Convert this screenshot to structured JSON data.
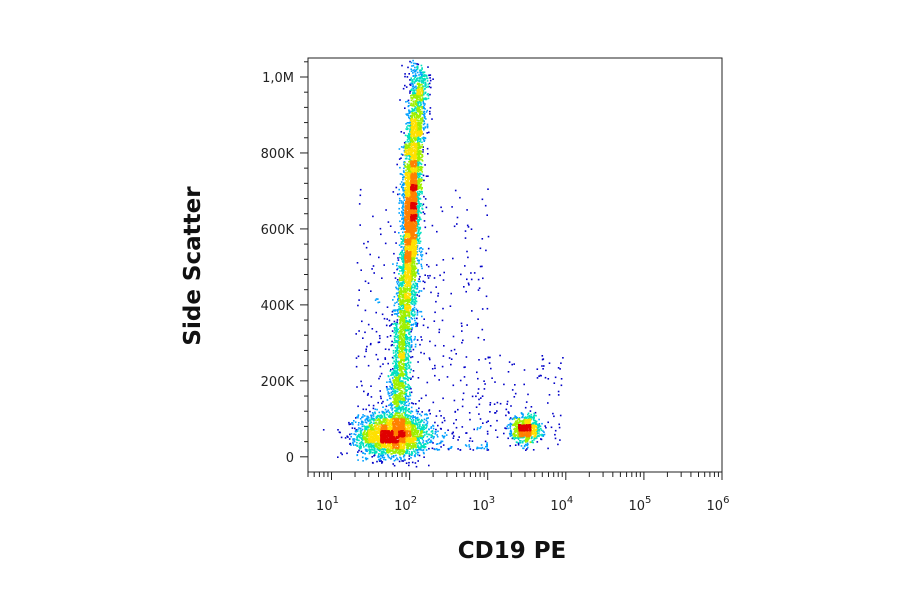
{
  "chart_data": {
    "type": "scatter",
    "subtype": "flow-cytometry-density-dot-plot",
    "title": "",
    "xlabel": "CD19 PE",
    "ylabel": "Side Scatter",
    "x_scale": "log",
    "xlim": [
      5,
      1000000
    ],
    "ylim": [
      -40000,
      1050000
    ],
    "x_ticks": [
      {
        "value": 10,
        "base": "10",
        "exp": "1"
      },
      {
        "value": 100,
        "base": "10",
        "exp": "2"
      },
      {
        "value": 1000,
        "base": "10",
        "exp": "3"
      },
      {
        "value": 10000,
        "base": "10",
        "exp": "4"
      },
      {
        "value": 100000,
        "base": "10",
        "exp": "5"
      },
      {
        "value": 1000000,
        "base": "10",
        "exp": "6"
      }
    ],
    "y_ticks": [
      {
        "value": 0,
        "label": "0"
      },
      {
        "value": 200000,
        "label": "200K"
      },
      {
        "value": 400000,
        "label": "400K"
      },
      {
        "value": 600000,
        "label": "600K"
      },
      {
        "value": 800000,
        "label": "800K"
      },
      {
        "value": 1000000,
        "label": "1,0M"
      }
    ],
    "grid": false,
    "legend": "none",
    "color_scale": [
      "#0000c8",
      "#00a0ff",
      "#00e0c0",
      "#a0f000",
      "#ffe000",
      "#ff8000",
      "#e00000"
    ],
    "populations": [
      {
        "cd19_pe": 55,
        "side_scatter": 60000
      },
      {
        "cd19_pe": 110,
        "side_scatter": 620000
      },
      {
        "cd19_pe": 3000,
        "side_scatter": 75000
      }
    ]
  }
}
